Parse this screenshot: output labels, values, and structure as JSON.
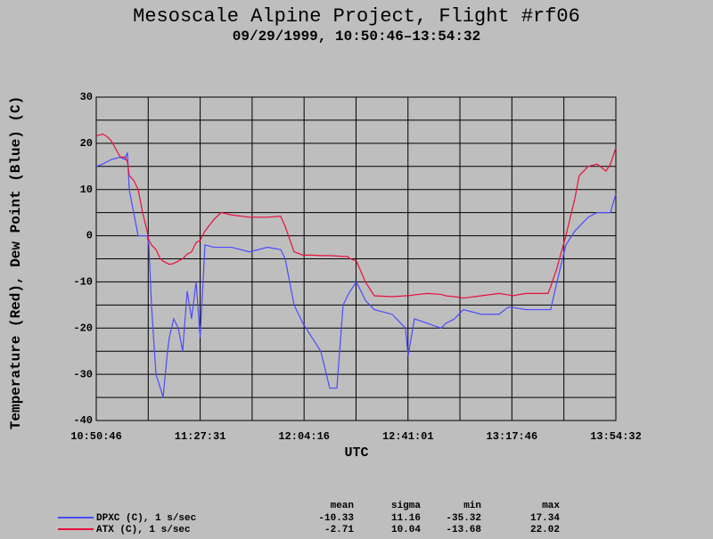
{
  "chart_data": {
    "type": "line",
    "title": "Mesoscale Alpine Project, Flight #rf06",
    "subtitle": "09/29/1999, 10:50:46–13:54:32",
    "ylabel": "Temperature (Red), Dew Point (Blue) (C)",
    "xlabel": "UTC",
    "grid": true,
    "x": [
      "10:50:46",
      "10:52:58",
      "10:54:33",
      "10:56:07",
      "10:59:17",
      "11:00:51",
      "11:01:48",
      "11:02:26",
      "11:04:00",
      "11:05:35",
      "11:07:09",
      "11:08:44",
      "11:09:22",
      "11:10:18",
      "11:11:53",
      "11:13:28",
      "11:14:24",
      "11:15:59",
      "11:16:37",
      "11:18:11",
      "11:19:46",
      "11:21:20",
      "11:22:55",
      "11:24:29",
      "11:26:04",
      "11:27:31",
      "11:29:13",
      "11:32:22",
      "11:34:53",
      "11:38:40",
      "11:44:59",
      "11:51:17",
      "11:56:00",
      "11:57:35",
      "12:00:44",
      "12:03:53",
      "12:07:02",
      "12:10:11",
      "12:13:20",
      "12:15:52",
      "12:18:04",
      "12:19:39",
      "12:20:35",
      "12:22:48",
      "12:25:57",
      "12:29:06",
      "12:35:24",
      "12:40:08",
      "12:41:04",
      "12:43:17",
      "12:48:01",
      "12:52:44",
      "12:54:19",
      "12:57:28",
      "13:00:37",
      "13:06:55",
      "13:13:13",
      "13:16:22",
      "13:17:57",
      "13:22:41",
      "13:25:50",
      "13:30:33",
      "13:31:30",
      "13:33:42",
      "13:36:52",
      "13:40:01",
      "13:41:35",
      "13:44:44",
      "13:47:53",
      "13:51:03",
      "13:52:37",
      "13:54:32"
    ],
    "series": [
      {
        "name": "DPXC (C), 1 s/sec",
        "color": "#4b4bff",
        "values": [
          15,
          15.5,
          16,
          16.5,
          17,
          16.5,
          18,
          10,
          5,
          0,
          0,
          0,
          -2,
          -15,
          -30,
          -33,
          -35,
          -25,
          -22,
          -18,
          -20,
          -25,
          -12,
          -18,
          -10,
          -22,
          -2,
          -2.5,
          -2.5,
          -2.5,
          -3.5,
          -2.5,
          -3,
          -5,
          -15,
          -19,
          -22,
          -25,
          -33,
          -33,
          -15,
          -13,
          -12,
          -10,
          -14,
          -16,
          -17,
          -20,
          -26,
          -18,
          -19,
          -20,
          -19,
          -18,
          -16,
          -17,
          -17,
          -15.5,
          -15.5,
          -16,
          -16,
          -16,
          -16,
          -10,
          -2,
          1,
          2,
          4,
          5,
          5,
          5,
          9
        ]
      },
      {
        "name": "ATX (C), 1 s/sec",
        "color": "#e8103c",
        "values": [
          21.6,
          22,
          21.5,
          20.5,
          17,
          17,
          16,
          13,
          12,
          10,
          5,
          1,
          -1,
          -2,
          -3,
          -5,
          -5.5,
          -6,
          -6.2,
          -6,
          -5.5,
          -5,
          -4,
          -3.5,
          -1.5,
          -1,
          1,
          3.5,
          5,
          4.5,
          4,
          4,
          4.2,
          2,
          -3.5,
          -4.2,
          -4.2,
          -4.3,
          -4.3,
          -4.4,
          -4.5,
          -4.5,
          -5,
          -5.5,
          -10,
          -13,
          -13.2,
          -13,
          -13,
          -12.8,
          -12.5,
          -12.7,
          -13,
          -13.2,
          -13.5,
          -13,
          -12.5,
          -12.8,
          -13,
          -12.5,
          -12.5,
          -12.5,
          -11,
          -7,
          0,
          8,
          13,
          15,
          15.5,
          14,
          15.5,
          19
        ]
      }
    ],
    "xlim": [
      "10:50:46",
      "13:54:32"
    ],
    "xticks": [
      "10:50:46",
      "11:27:31",
      "12:04:16",
      "12:41:01",
      "13:17:46",
      "13:54:32"
    ],
    "ylim": [
      -40,
      30
    ],
    "yticks": [
      -40,
      -30,
      -20,
      -10,
      0,
      10,
      20,
      30
    ],
    "stats": {
      "headers": [
        "mean",
        "sigma",
        "min",
        "max"
      ],
      "rows": [
        [
          -10.33,
          11.16,
          -35.32,
          17.34
        ],
        [
          -2.71,
          10.04,
          -13.68,
          22.02
        ]
      ]
    }
  }
}
